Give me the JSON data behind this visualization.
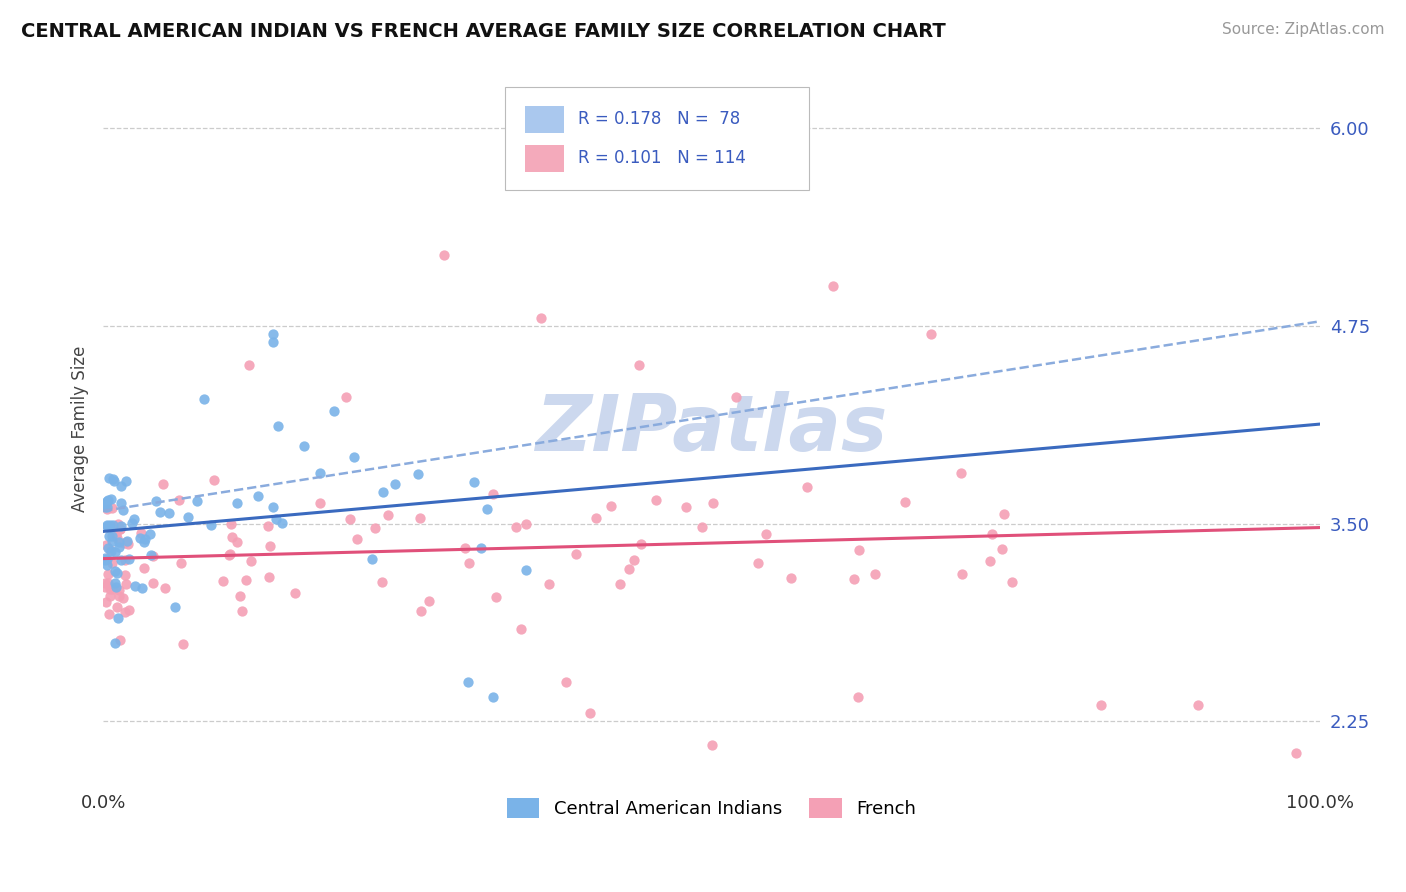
{
  "title": "CENTRAL AMERICAN INDIAN VS FRENCH AVERAGE FAMILY SIZE CORRELATION CHART",
  "source": "Source: ZipAtlas.com",
  "ylabel": "Average Family Size",
  "xlim": [
    0,
    1
  ],
  "ylim": [
    1.85,
    6.35
  ],
  "yticks": [
    2.25,
    3.5,
    4.75,
    6.0
  ],
  "xtick_labels": [
    "0.0%",
    "100.0%"
  ],
  "ytick_color": "#3a5bbf",
  "group1_label": "Central American Indians",
  "group1_color": "#7ab3e8",
  "group1_R": 0.178,
  "group1_N": 78,
  "group1_line_color": "#3a6abf",
  "group1_line_style": "-",
  "group1_ci_color": "#8aabdd",
  "group1_ci_style": "--",
  "group2_label": "French",
  "group2_color": "#f4a0b5",
  "group2_R": 0.101,
  "group2_N": 114,
  "group2_line_color": "#e0507a",
  "group2_line_style": "-",
  "background_color": "#ffffff",
  "grid_color": "#cccccc",
  "watermark": "ZIPatlas",
  "watermark_color": "#ccd8ee",
  "legend_box_color1": "#aac8ee",
  "legend_box_color2": "#f4aabb",
  "title_fontsize": 14,
  "source_fontsize": 11,
  "tick_fontsize": 13,
  "legend_fontsize": 12
}
